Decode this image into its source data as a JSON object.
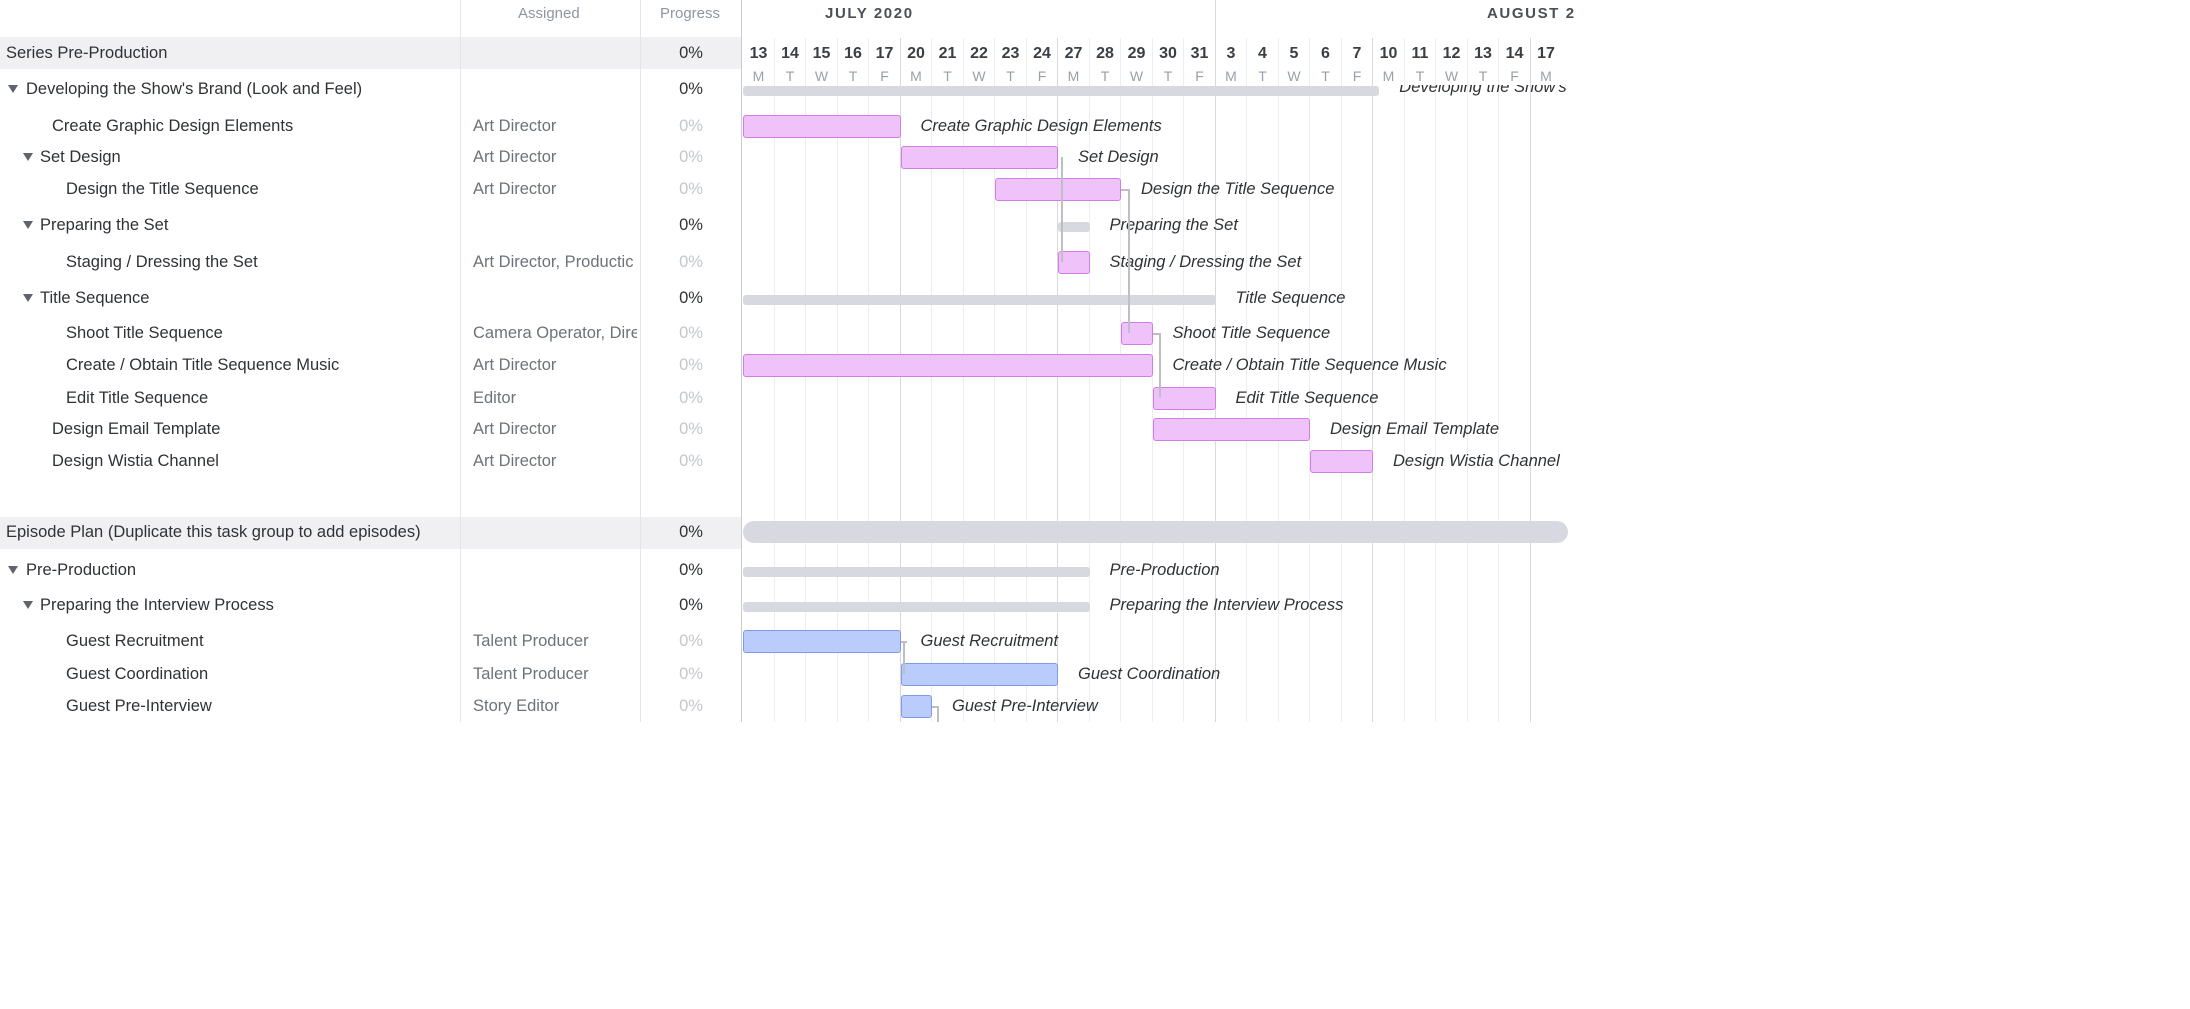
{
  "columns": {
    "assigned": "Assigned",
    "progress": "Progress"
  },
  "timeline": {
    "months": [
      "JULY 2020",
      "AUGUST 2"
    ],
    "days": [
      {
        "n": "13",
        "l": "M"
      },
      {
        "n": "14",
        "l": "T"
      },
      {
        "n": "15",
        "l": "W"
      },
      {
        "n": "16",
        "l": "T"
      },
      {
        "n": "17",
        "l": "F"
      },
      {
        "n": "20",
        "l": "M"
      },
      {
        "n": "21",
        "l": "T"
      },
      {
        "n": "22",
        "l": "W"
      },
      {
        "n": "23",
        "l": "T"
      },
      {
        "n": "24",
        "l": "F"
      },
      {
        "n": "27",
        "l": "M"
      },
      {
        "n": "28",
        "l": "T"
      },
      {
        "n": "29",
        "l": "W"
      },
      {
        "n": "30",
        "l": "T"
      },
      {
        "n": "31",
        "l": "F"
      },
      {
        "n": "3",
        "l": "M"
      },
      {
        "n": "4",
        "l": "T"
      },
      {
        "n": "5",
        "l": "W"
      },
      {
        "n": "6",
        "l": "T"
      },
      {
        "n": "7",
        "l": "F"
      },
      {
        "n": "10",
        "l": "M"
      },
      {
        "n": "11",
        "l": "T"
      },
      {
        "n": "12",
        "l": "W"
      },
      {
        "n": "13",
        "l": "T"
      },
      {
        "n": "14",
        "l": "F"
      },
      {
        "n": "17",
        "l": "M"
      }
    ]
  },
  "colors": {
    "task_bar": "#f0c2fa",
    "task_border": "#d07de6",
    "episode_bar": "#b9ccfb",
    "episode_border": "#7f9be6",
    "summary_bar": "#d8d9e0"
  },
  "rows": [
    {
      "name": "Series Pre-Production",
      "assigned": "",
      "progress": "0%",
      "type": "group"
    },
    {
      "name": "Developing the Show's Brand (Look and Feel)",
      "assigned": "",
      "progress": "0%",
      "type": "summary",
      "bar_label": "Developing the Show's"
    },
    {
      "name": "Create Graphic Design Elements",
      "assigned": "Art Director",
      "progress": "0%",
      "type": "task",
      "bar_label": "Create Graphic Design Elements"
    },
    {
      "name": "Set Design",
      "assigned": "Art Director",
      "progress": "0%",
      "type": "task",
      "bar_label": "Set Design"
    },
    {
      "name": "Design the Title Sequence",
      "assigned": "Art Director",
      "progress": "0%",
      "type": "task",
      "bar_label": "Design the Title Sequence"
    },
    {
      "name": "Preparing the Set",
      "assigned": "",
      "progress": "0%",
      "type": "summary",
      "bar_label": "Preparing the Set"
    },
    {
      "name": "Staging / Dressing the Set",
      "assigned": "Art Director, Productic",
      "progress": "0%",
      "type": "task",
      "bar_label": "Staging / Dressing the Set"
    },
    {
      "name": "Title Sequence",
      "assigned": "",
      "progress": "0%",
      "type": "summary",
      "bar_label": "Title Sequence"
    },
    {
      "name": "Shoot Title Sequence",
      "assigned": "Camera Operator, Dire",
      "progress": "0%",
      "type": "task",
      "bar_label": "Shoot Title Sequence"
    },
    {
      "name": "Create / Obtain Title Sequence Music",
      "assigned": "Art Director",
      "progress": "0%",
      "type": "task",
      "bar_label": "Create / Obtain Title Sequence Music"
    },
    {
      "name": "Edit Title Sequence",
      "assigned": "Editor",
      "progress": "0%",
      "type": "task",
      "bar_label": "Edit Title Sequence"
    },
    {
      "name": "Design Email Template",
      "assigned": "Art Director",
      "progress": "0%",
      "type": "task",
      "bar_label": "Design Email Template"
    },
    {
      "name": "Design Wistia Channel",
      "assigned": "Art Director",
      "progress": "0%",
      "type": "task",
      "bar_label": "Design Wistia Channel"
    },
    {
      "name": "Episode Plan (Duplicate this task group to add episodes)",
      "assigned": "",
      "progress": "0%",
      "type": "group"
    },
    {
      "name": "Pre-Production",
      "assigned": "",
      "progress": "0%",
      "type": "summary",
      "bar_label": "Pre-Production"
    },
    {
      "name": "Preparing the Interview Process",
      "assigned": "",
      "progress": "0%",
      "type": "summary",
      "bar_label": "Preparing the Interview Process"
    },
    {
      "name": "Guest Recruitment",
      "assigned": "Talent Producer",
      "progress": "0%",
      "type": "task",
      "bar_label": "Guest Recruitment"
    },
    {
      "name": "Guest Coordination",
      "assigned": "Talent Producer",
      "progress": "0%",
      "type": "task",
      "bar_label": "Guest Coordination"
    },
    {
      "name": "Guest Pre-Interview",
      "assigned": "Story Editor",
      "progress": "0%",
      "type": "task",
      "bar_label": "Guest Pre-Interview"
    }
  ]
}
